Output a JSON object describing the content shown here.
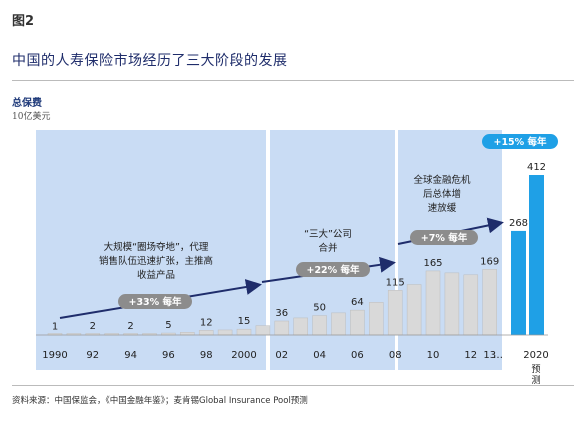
{
  "figure_label": "图2",
  "chart_data": {
    "type": "bar",
    "title": "中国的人寿保险市场经历了三大阶段的发展",
    "ylabel": "总保费",
    "yunit": "10亿美元",
    "x": [
      "1990",
      "",
      "92",
      "",
      "94",
      "",
      "96",
      "",
      "98",
      "",
      "2000",
      "",
      "02",
      "",
      "04",
      "",
      "06",
      "",
      "08",
      "",
      "10",
      "",
      "12",
      "13",
      "",
      "",
      "2020"
    ],
    "categories": [
      1990,
      1991,
      1992,
      1993,
      1994,
      1995,
      1996,
      1997,
      1998,
      1999,
      2000,
      2001,
      2002,
      2003,
      2004,
      2005,
      2006,
      2007,
      2008,
      2009,
      2010,
      2011,
      2012,
      2013,
      2019,
      2020
    ],
    "values": [
      1,
      1.5,
      2,
      2,
      2,
      3,
      5,
      7,
      12,
      13,
      15,
      24,
      36,
      44,
      50,
      57,
      64,
      84,
      115,
      130,
      165,
      160,
      155,
      169,
      268,
      412
    ],
    "data_labels": [
      {
        "year": 1990,
        "text": "1"
      },
      {
        "year": 1992,
        "text": "2"
      },
      {
        "year": 1994,
        "text": "2"
      },
      {
        "year": 1996,
        "text": "5"
      },
      {
        "year": 1998,
        "text": "12"
      },
      {
        "year": 2000,
        "text": "15"
      },
      {
        "year": 2002,
        "text": "36"
      },
      {
        "year": 2004,
        "text": "50"
      },
      {
        "year": 2006,
        "text": "64"
      },
      {
        "year": 2008,
        "text": "115"
      },
      {
        "year": 2010,
        "text": "165"
      },
      {
        "year": 2013,
        "text": "169"
      },
      {
        "year": 2019,
        "text": "268"
      },
      {
        "year": 2020,
        "text": "412"
      }
    ],
    "x_tick_labels": [
      "1990",
      "92",
      "94",
      "96",
      "98",
      "2000",
      "02",
      "04",
      "06",
      "08",
      "10",
      "12",
      "13",
      "…",
      "2020"
    ],
    "forecast_label": "预测",
    "ylim": [
      0,
      450
    ],
    "phases": [
      {
        "text_lines": [
          "大规模“圈场夺地”，代理",
          "销售队伍迅速扩张，主推高",
          "收益产品"
        ],
        "cagr": "+33% 每年"
      },
      {
        "text_lines": [
          "“三大”公司",
          "合并"
        ],
        "cagr": "+22% 每年"
      },
      {
        "text_lines": [
          "全球金融危机",
          "后总体增",
          "速放缓"
        ],
        "cagr": "+7% 每年"
      }
    ],
    "forecast_cagr": "+15% 每年",
    "colors": {
      "phase_bg": "#c9dcf4",
      "bar_grey": "#d9d9d9",
      "bar_forecast": "#1fa0e6",
      "arrow": "#1f2d6b",
      "pill": "#8c8c8c",
      "pill_blue": "#1fa0e6"
    }
  },
  "source": "资料来源：中国保监会，《中国金融年鉴》；麦肯锡Global Insurance Pool预测"
}
